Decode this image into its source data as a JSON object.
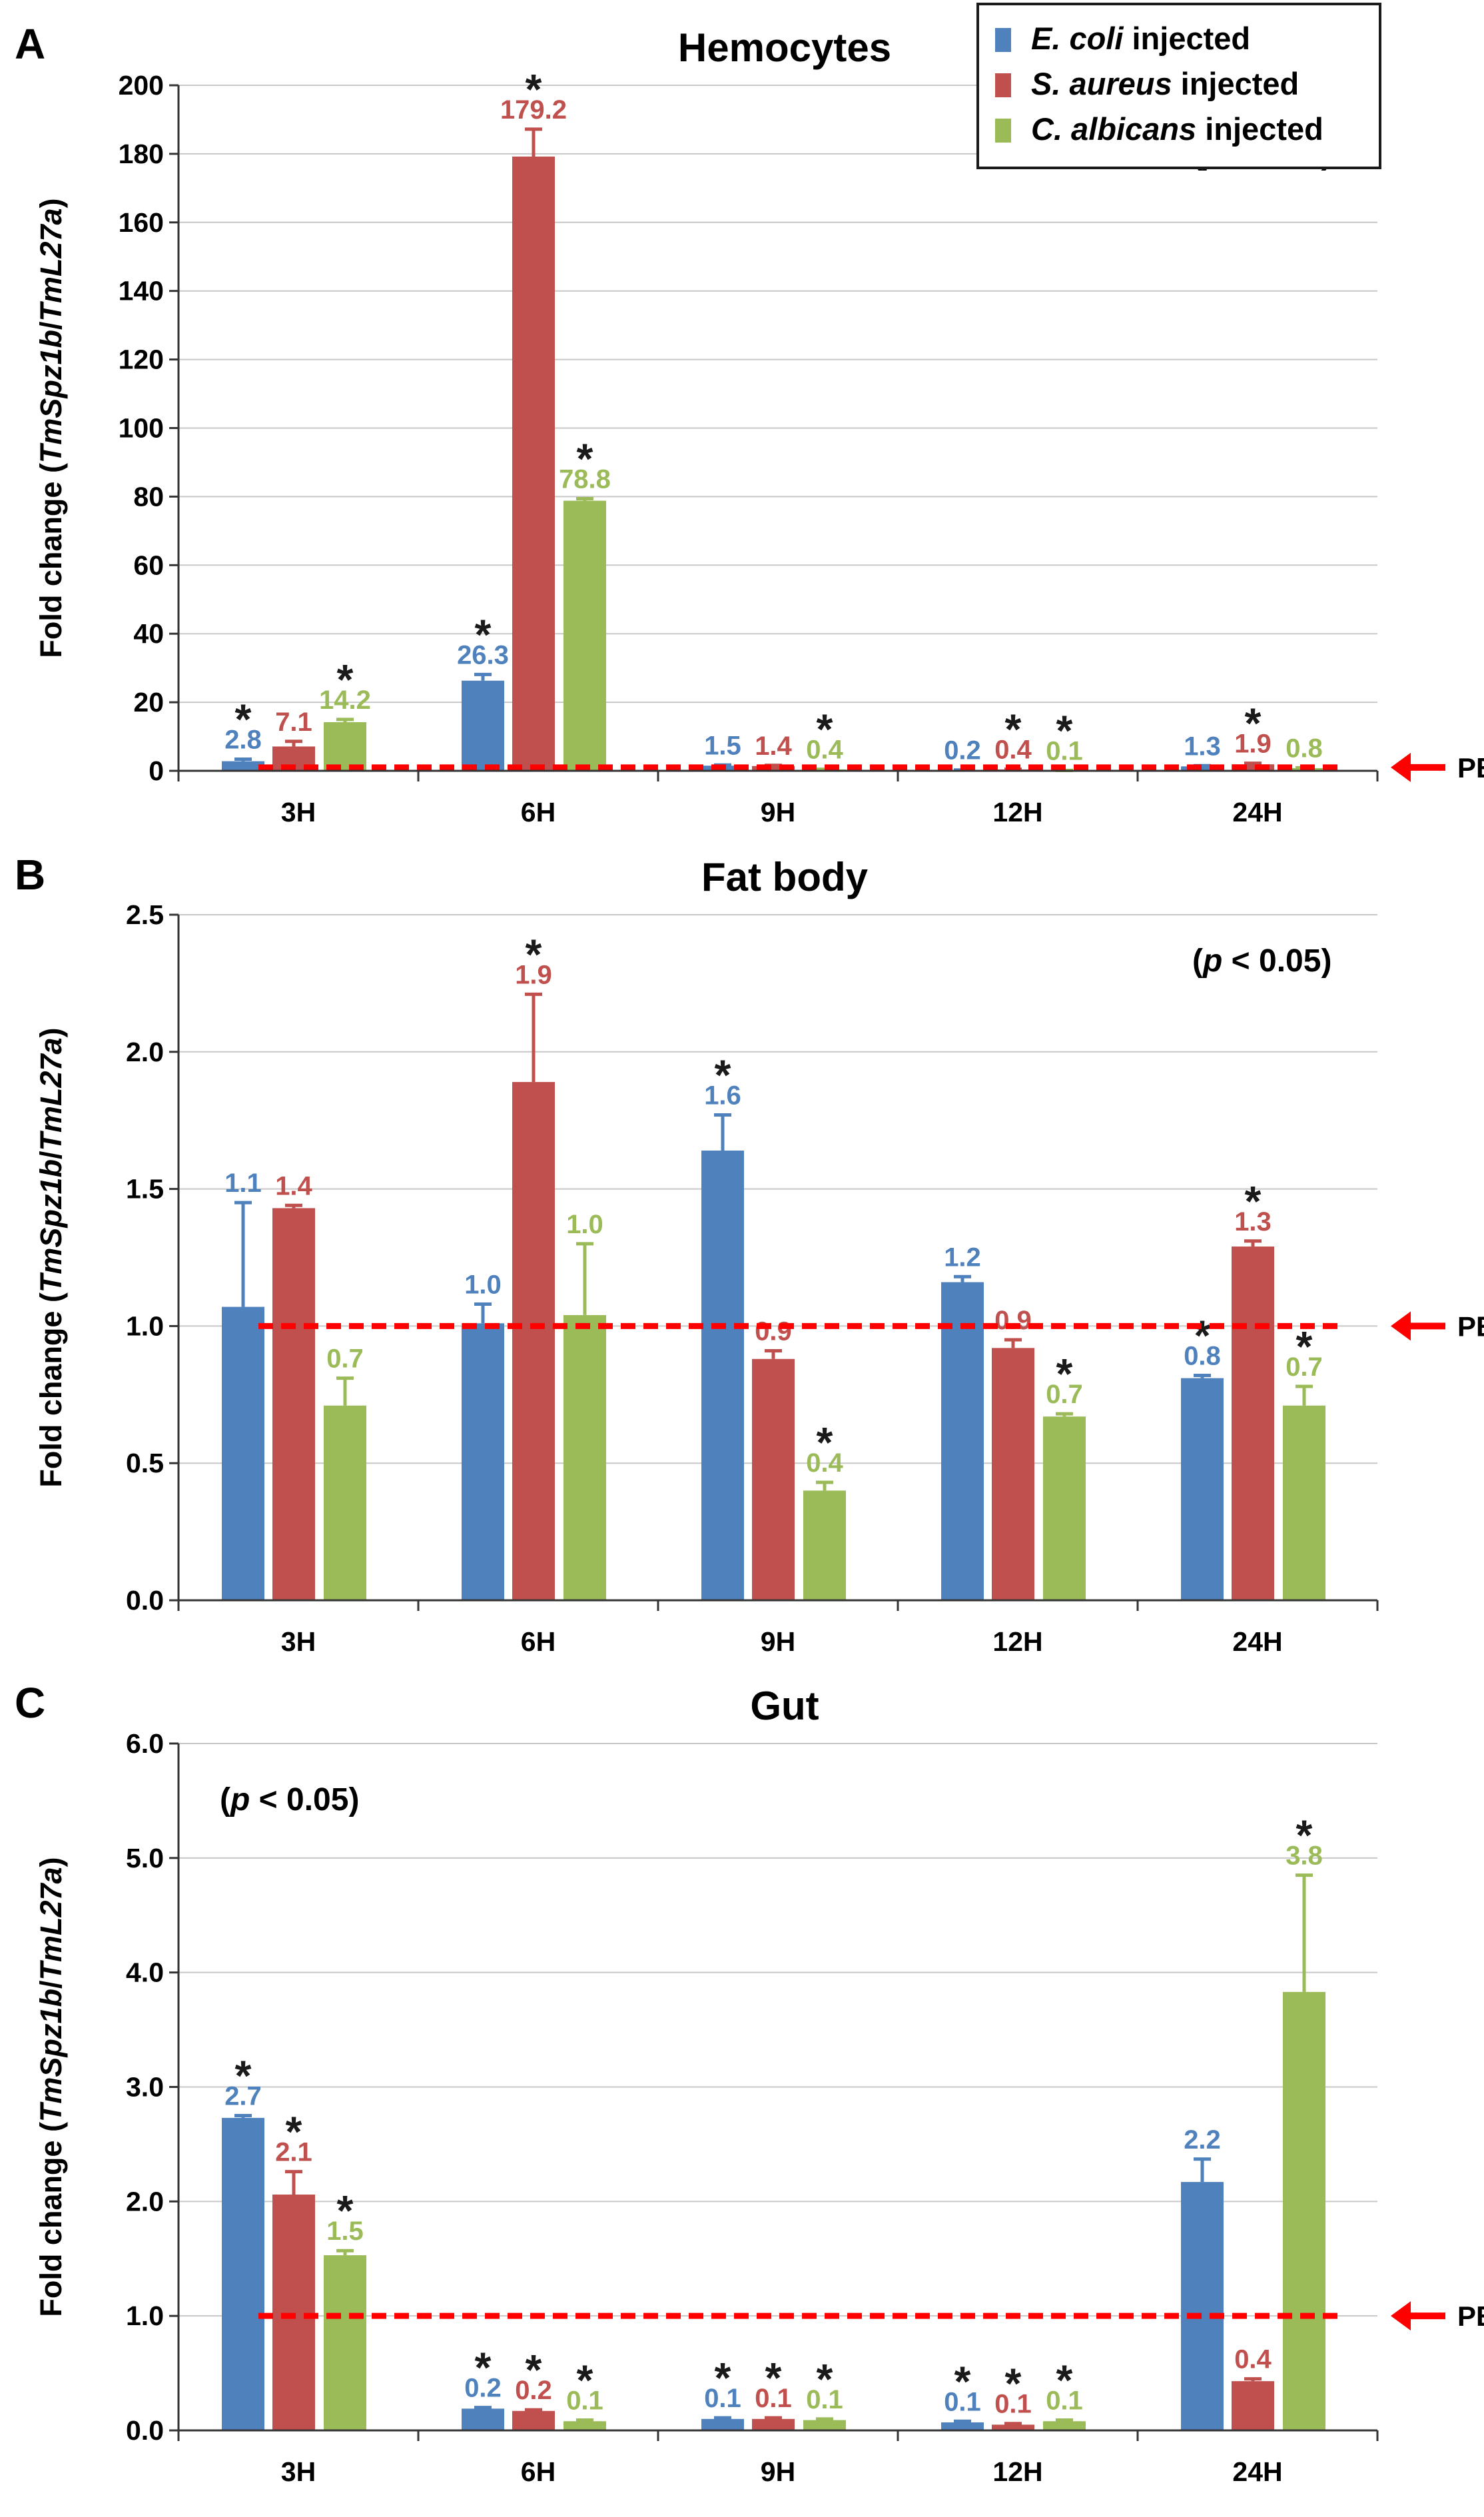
{
  "legend": {
    "entries": [
      {
        "name_italic": "E. coli",
        "name_rest": " injected",
        "color": "#4f81bd"
      },
      {
        "name_italic": "S. aureus",
        "name_rest": " injected",
        "color": "#c0504d"
      },
      {
        "name_italic": "C. albicans",
        "name_rest": " injected",
        "color": "#9bbb59"
      }
    ]
  },
  "pbs_label": "PBS",
  "axis_label": {
    "prefix": "Fold change (",
    "gene1": "TmSpz1b",
    "sep": "/",
    "gene2": "TmL27a",
    "suffix": ")"
  },
  "chart_data": [
    {
      "panel": "A",
      "type": "bar",
      "title": "Hemocytes",
      "categories": [
        "3H",
        "6H",
        "9H",
        "12H",
        "24H"
      ],
      "ylim": [
        0,
        200
      ],
      "yticks": [
        0,
        20,
        40,
        60,
        80,
        100,
        120,
        140,
        160,
        180,
        200
      ],
      "tick_decimals": 0,
      "pbs_baseline": 1.0,
      "p_note": "(p < 0.05)",
      "series": [
        {
          "name": "E. coli injected",
          "color": "#4f81bd",
          "values": [
            2.8,
            26.3,
            1.5,
            0.2,
            1.3
          ],
          "labels": [
            "2.8",
            "26.3",
            "1.5",
            "0.2",
            "1.3"
          ],
          "errors": [
            0.6,
            1.8,
            0.2,
            0.05,
            0.2
          ],
          "significant": [
            true,
            true,
            false,
            false,
            false
          ]
        },
        {
          "name": "S. aureus injected",
          "color": "#c0504d",
          "values": [
            7.1,
            179.2,
            1.4,
            0.4,
            1.9
          ],
          "labels": [
            "7.1",
            "179.2",
            "1.4",
            "0.4",
            "1.9"
          ],
          "errors": [
            1.5,
            8,
            0.2,
            0.05,
            0.3
          ],
          "significant": [
            false,
            true,
            false,
            true,
            true
          ]
        },
        {
          "name": "C. albicans injected",
          "color": "#9bbb59",
          "values": [
            14.2,
            78.8,
            0.4,
            0.1,
            0.8
          ],
          "labels": [
            "14.2",
            "78.8",
            "0.4",
            "0.1",
            "0.8"
          ],
          "errors": [
            0.8,
            0.6,
            0.05,
            0.02,
            0.1
          ],
          "significant": [
            true,
            true,
            true,
            true,
            false
          ]
        }
      ]
    },
    {
      "panel": "B",
      "type": "bar",
      "title": "Fat body",
      "categories": [
        "3H",
        "6H",
        "9H",
        "12H",
        "24H"
      ],
      "ylim": [
        0,
        2.5
      ],
      "yticks": [
        0,
        0.5,
        1.0,
        1.5,
        2.0,
        2.5
      ],
      "tick_decimals": 1,
      "pbs_baseline": 1.0,
      "p_note": "(p < 0.05)",
      "series": [
        {
          "name": "E. coli injected",
          "color": "#4f81bd",
          "values": [
            1.07,
            1.01,
            1.64,
            1.16,
            0.81
          ],
          "labels": [
            "1.1",
            "1.0",
            "1.6",
            "1.2",
            "0.8"
          ],
          "errors": [
            0.38,
            0.07,
            0.13,
            0.02,
            0.01
          ],
          "significant": [
            false,
            false,
            true,
            false,
            true
          ]
        },
        {
          "name": "S. aureus injected",
          "color": "#c0504d",
          "values": [
            1.43,
            1.89,
            0.88,
            0.92,
            1.29
          ],
          "labels": [
            "1.4",
            "1.9",
            "0.9",
            "0.9",
            "1.3"
          ],
          "errors": [
            0.01,
            0.32,
            0.03,
            0.03,
            0.02
          ],
          "significant": [
            false,
            true,
            false,
            false,
            true
          ]
        },
        {
          "name": "C. albicans injected",
          "color": "#9bbb59",
          "values": [
            0.71,
            1.04,
            0.4,
            0.67,
            0.71
          ],
          "labels": [
            "0.7",
            "1.0",
            "0.4",
            "0.7",
            "0.7"
          ],
          "errors": [
            0.1,
            0.26,
            0.03,
            0.01,
            0.07
          ],
          "significant": [
            false,
            false,
            true,
            true,
            true
          ]
        }
      ]
    },
    {
      "panel": "C",
      "type": "bar",
      "title": "Gut",
      "categories": [
        "3H",
        "6H",
        "9H",
        "12H",
        "24H"
      ],
      "ylim": [
        0,
        6
      ],
      "yticks": [
        0,
        1,
        2,
        3,
        4,
        5,
        6
      ],
      "tick_decimals": 1,
      "pbs_baseline": 1.0,
      "p_note": "(p < 0.05)",
      "series": [
        {
          "name": "E. coli injected",
          "color": "#4f81bd",
          "values": [
            2.73,
            0.19,
            0.1,
            0.07,
            2.17
          ],
          "labels": [
            "2.7",
            "0.2",
            "0.1",
            "0.1",
            "2.2"
          ],
          "errors": [
            0.02,
            0.01,
            0.01,
            0.01,
            0.2
          ],
          "significant": [
            true,
            true,
            true,
            true,
            false
          ]
        },
        {
          "name": "S. aureus injected",
          "color": "#c0504d",
          "values": [
            2.06,
            0.17,
            0.1,
            0.05,
            0.43
          ],
          "labels": [
            "2.1",
            "0.2",
            "0.1",
            "0.1",
            "0.4"
          ],
          "errors": [
            0.2,
            0.01,
            0.01,
            0.01,
            0.02
          ],
          "significant": [
            true,
            true,
            true,
            true,
            false
          ]
        },
        {
          "name": "C. albicans injected",
          "color": "#9bbb59",
          "values": [
            1.53,
            0.08,
            0.09,
            0.08,
            3.83
          ],
          "labels": [
            "1.5",
            "0.1",
            "0.1",
            "0.1",
            "3.8"
          ],
          "errors": [
            0.04,
            0.01,
            0.01,
            0.01,
            1.02
          ],
          "significant": [
            true,
            true,
            true,
            true,
            true
          ]
        }
      ]
    }
  ]
}
